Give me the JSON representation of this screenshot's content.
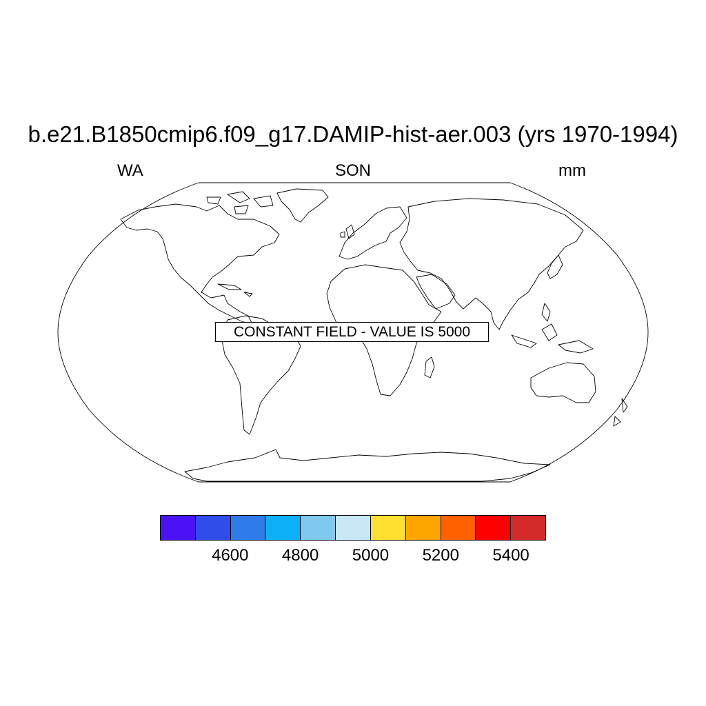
{
  "title": "b.e21.B1850cmip6.f09_g17.DAMIP-hist-aer.003 (yrs 1970-1994)",
  "subtitle_left": "WA",
  "subtitle_center": "SON",
  "subtitle_right": "mm",
  "note": "CONSTANT FIELD - VALUE IS 5000",
  "map": {
    "projection": "Robinson",
    "field": "constant",
    "value": 5000
  },
  "colorbar": {
    "colors": [
      "#4b12f5",
      "#2f4de8",
      "#2f7ce8",
      "#0db0f7",
      "#7fc9ee",
      "#c9e8f7",
      "#ffe030",
      "#ffa500",
      "#ff6000",
      "#ff0000",
      "#d42a2a"
    ],
    "labels": [
      "4600",
      "4800",
      "5000",
      "5200",
      "5400"
    ],
    "label_boundaries": [
      2,
      4,
      6,
      8,
      10
    ]
  }
}
